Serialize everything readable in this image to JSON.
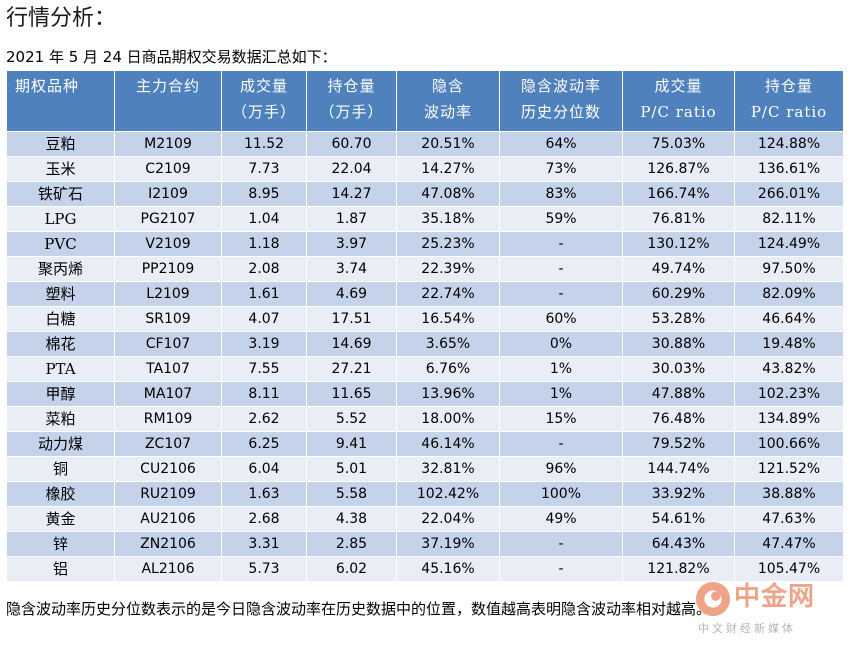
{
  "heading": "行情分析：",
  "subheading": "2021 年 5 月 24 日商品期权交易数据汇总如下：",
  "table": {
    "columns": [
      "期权品种",
      "主力合约",
      "成交量\n（万手）",
      "持仓量\n（万手）",
      "隐含\n波动率",
      "隐含波动率\n历史分位数",
      "成交量\nP/C ratio",
      "持仓量\nP/C ratio"
    ],
    "rows": [
      [
        "豆粕",
        "M2109",
        "11.52",
        "60.70",
        "20.51%",
        "64%",
        "75.03%",
        "124.88%"
      ],
      [
        "玉米",
        "C2109",
        "7.73",
        "22.04",
        "14.27%",
        "73%",
        "126.87%",
        "136.61%"
      ],
      [
        "铁矿石",
        "I2109",
        "8.95",
        "14.27",
        "47.08%",
        "83%",
        "166.74%",
        "266.01%"
      ],
      [
        "LPG",
        "PG2107",
        "1.04",
        "1.87",
        "35.18%",
        "59%",
        "76.81%",
        "82.11%"
      ],
      [
        "PVC",
        "V2109",
        "1.18",
        "3.97",
        "25.23%",
        "-",
        "130.12%",
        "124.49%"
      ],
      [
        "聚丙烯",
        "PP2109",
        "2.08",
        "3.74",
        "22.39%",
        "-",
        "49.74%",
        "97.50%"
      ],
      [
        "塑料",
        "L2109",
        "1.61",
        "4.69",
        "22.74%",
        "-",
        "60.29%",
        "82.09%"
      ],
      [
        "白糖",
        "SR109",
        "4.07",
        "17.51",
        "16.54%",
        "60%",
        "53.28%",
        "46.64%"
      ],
      [
        "棉花",
        "CF107",
        "3.19",
        "14.69",
        "3.65%",
        "0%",
        "30.88%",
        "19.48%"
      ],
      [
        "PTA",
        "TA107",
        "7.55",
        "27.21",
        "6.76%",
        "1%",
        "30.03%",
        "43.82%"
      ],
      [
        "甲醇",
        "MA107",
        "8.11",
        "11.65",
        "13.96%",
        "1%",
        "47.88%",
        "102.23%"
      ],
      [
        "菜粕",
        "RM109",
        "2.62",
        "5.52",
        "18.00%",
        "15%",
        "76.48%",
        "134.89%"
      ],
      [
        "动力煤",
        "ZC107",
        "6.25",
        "9.41",
        "46.14%",
        "-",
        "79.52%",
        "100.66%"
      ],
      [
        "铜",
        "CU2106",
        "6.04",
        "5.01",
        "32.81%",
        "96%",
        "144.74%",
        "121.52%"
      ],
      [
        "橡胶",
        "RU2109",
        "1.63",
        "5.58",
        "102.42%",
        "100%",
        "33.92%",
        "38.88%"
      ],
      [
        "黄金",
        "AU2106",
        "2.68",
        "4.38",
        "22.04%",
        "49%",
        "54.61%",
        "47.63%"
      ],
      [
        "锌",
        "ZN2106",
        "3.31",
        "2.85",
        "37.19%",
        "-",
        "64.43%",
        "47.47%"
      ],
      [
        "铝",
        "AL2106",
        "5.73",
        "6.02",
        "45.16%",
        "-",
        "121.82%",
        "105.47%"
      ]
    ]
  },
  "footnote": "隐含波动率历史分位数表示的是今日隐含波动率在历史数据中的位置，数值越高表明隐含波动率相对越高。",
  "watermark": {
    "name": "中金网",
    "tagline": "中文财经新媒体",
    "brand_color": "#e05a2a"
  },
  "colors": {
    "header_bg": "#4f81bd",
    "row_dark": "#c5d3ea",
    "row_light": "#e8edf6"
  }
}
